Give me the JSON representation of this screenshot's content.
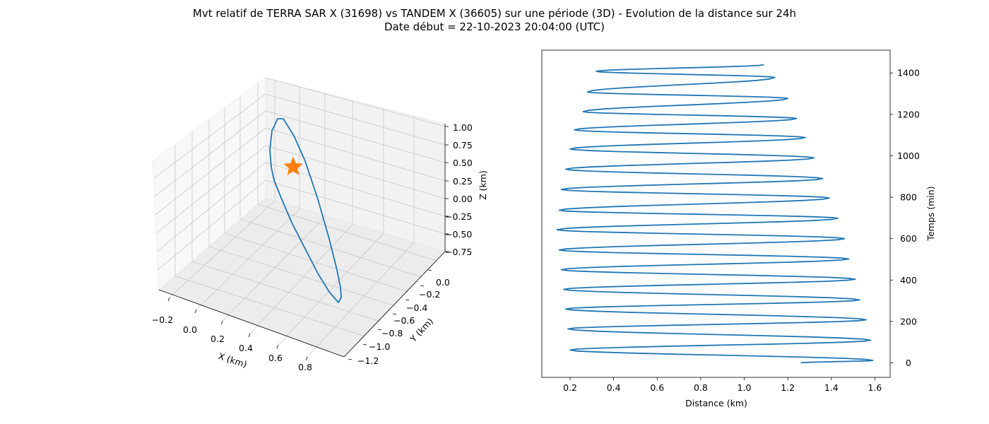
{
  "title_line1": "Mvt relatif de TERRA SAR X (31698) vs TANDEM X (36605) sur une période (3D) - Evolution de la distance sur 24h",
  "title_line2": "Date début = 22-10-2023 20:04:00 (UTC)",
  "chart_data": [
    {
      "type": "line",
      "projection": "3d",
      "xlabel": "X (km)",
      "ylabel": "Y (km)",
      "zlabel": "Z (km)",
      "x_ticks": [
        "−0.2",
        "0.0",
        "0.2",
        "0.4",
        "0.6",
        "0.8"
      ],
      "y_ticks": [
        "0.0",
        "−0.2",
        "−0.4",
        "−0.6",
        "−0.8",
        "−1.0",
        "−1.2"
      ],
      "z_ticks": [
        "1.00",
        "0.75",
        "0.50",
        "0.25",
        "0.00",
        "−0.25",
        "−0.50",
        "−0.75"
      ],
      "grid": true,
      "line_color": "#1f77b4",
      "marker": {
        "type": "star",
        "color": "#ff7f0e"
      }
    },
    {
      "type": "line",
      "xlabel": "Distance (km)",
      "ylabel": "Temps (min)",
      "xlim": [
        0.07,
        1.67
      ],
      "ylim": [
        -70,
        1510
      ],
      "x_ticks": [
        "0.2",
        "0.4",
        "0.6",
        "0.8",
        "1.0",
        "1.2",
        "1.4",
        "1.6"
      ],
      "y_ticks": [
        "0",
        "200",
        "400",
        "600",
        "800",
        "1000",
        "1200",
        "1400"
      ],
      "y_axis_side": "right",
      "grid": false,
      "line_color": "#1f77b4",
      "peaks": [
        {
          "t": 0,
          "d": 1.26
        },
        {
          "t": 12,
          "d": 1.59
        },
        {
          "t": 62,
          "d": 0.2
        },
        {
          "t": 109,
          "d": 1.58
        },
        {
          "t": 164,
          "d": 0.19
        },
        {
          "t": 208,
          "d": 1.56
        },
        {
          "t": 260,
          "d": 0.18
        },
        {
          "t": 304,
          "d": 1.53
        },
        {
          "t": 355,
          "d": 0.17
        },
        {
          "t": 404,
          "d": 1.51
        },
        {
          "t": 450,
          "d": 0.16
        },
        {
          "t": 502,
          "d": 1.48
        },
        {
          "t": 545,
          "d": 0.15
        },
        {
          "t": 600,
          "d": 1.46
        },
        {
          "t": 643,
          "d": 0.14
        },
        {
          "t": 698,
          "d": 1.43
        },
        {
          "t": 737,
          "d": 0.15
        },
        {
          "t": 796,
          "d": 1.39
        },
        {
          "t": 837,
          "d": 0.16
        },
        {
          "t": 890,
          "d": 1.36
        },
        {
          "t": 935,
          "d": 0.18
        },
        {
          "t": 990,
          "d": 1.32
        },
        {
          "t": 1033,
          "d": 0.2
        },
        {
          "t": 1088,
          "d": 1.28
        },
        {
          "t": 1125,
          "d": 0.22
        },
        {
          "t": 1180,
          "d": 1.24
        },
        {
          "t": 1213,
          "d": 0.26
        },
        {
          "t": 1277,
          "d": 1.2
        },
        {
          "t": 1308,
          "d": 0.28
        },
        {
          "t": 1378,
          "d": 1.14
        },
        {
          "t": 1408,
          "d": 0.32
        },
        {
          "t": 1440,
          "d": 1.09
        }
      ]
    }
  ]
}
